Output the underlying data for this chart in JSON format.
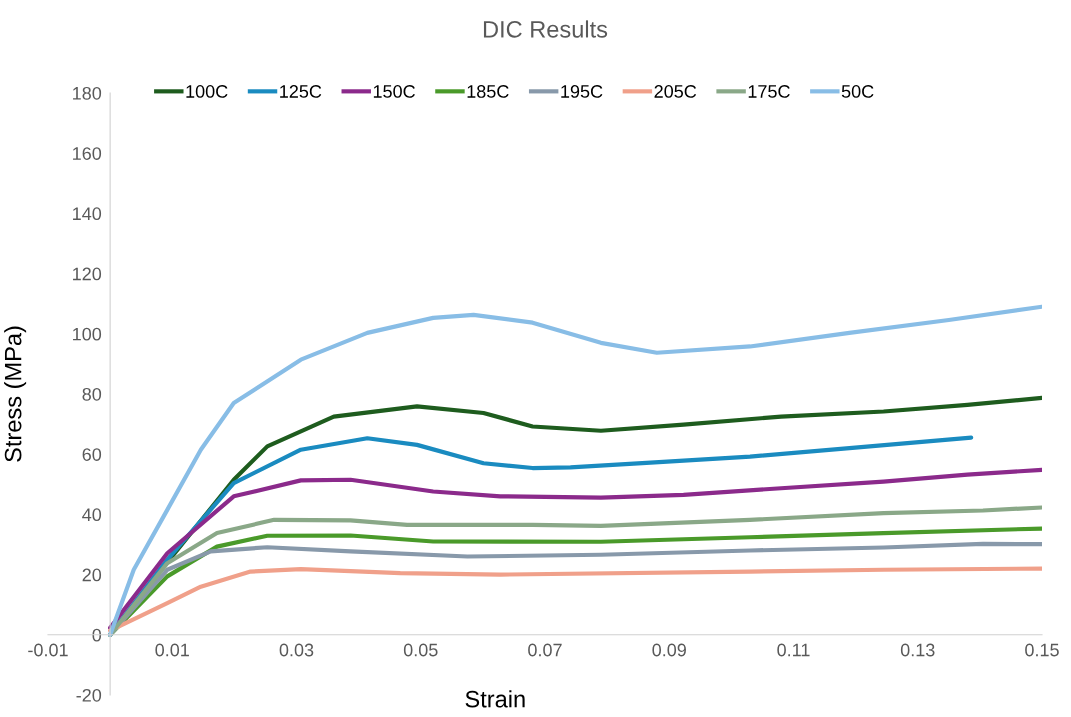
{
  "chart_data": {
    "type": "line",
    "title": "DIC Results",
    "xlabel": "Strain",
    "ylabel": "Stress (MPa)",
    "xlim": [
      -0.01,
      0.15
    ],
    "xticks": [
      -0.01,
      0.01,
      0.03,
      0.05,
      0.07,
      0.09,
      0.11,
      0.13,
      0.15
    ],
    "ylim": [
      -20,
      180
    ],
    "yticks": [
      -20,
      0,
      20,
      40,
      60,
      80,
      100,
      120,
      140,
      160,
      180
    ],
    "grid": false,
    "legend": "top",
    "marker": "none",
    "line_style": "solid",
    "series": [
      {
        "name": "100C",
        "color": "#1e5c1e",
        "x": [
          0,
          0.0092,
          0.0199,
          0.0253,
          0.036,
          0.0494,
          0.0601,
          0.068,
          0.079,
          0.0923,
          0.108,
          0.1245,
          0.138,
          0.15
        ],
        "values": [
          0,
          24,
          51.5,
          62.6,
          72.5,
          75.9,
          73.7,
          69.2,
          67.8,
          69.8,
          72.5,
          74.2,
          76.4,
          78.7
        ]
      },
      {
        "name": "125C",
        "color": "#1a8bc0",
        "x": [
          0,
          0.0092,
          0.0199,
          0.0307,
          0.0414,
          0.0494,
          0.0601,
          0.068,
          0.0741,
          0.087,
          0.103,
          0.119,
          0.1386
        ],
        "values": [
          0,
          25,
          50.4,
          61.5,
          65.3,
          63.1,
          57,
          55.4,
          55.6,
          57.2,
          59.2,
          62,
          65.5
        ]
      },
      {
        "name": "150C",
        "color": "#8b2a8b",
        "x": [
          0,
          0.0092,
          0.0199,
          0.0307,
          0.0387,
          0.052,
          0.0628,
          0.079,
          0.0923,
          0.108,
          0.1245,
          0.138,
          0.15
        ],
        "values": [
          2.3,
          27.1,
          46,
          51.3,
          51.5,
          47.6,
          46,
          45.6,
          46.5,
          48.7,
          50.9,
          53.2,
          54.8
        ]
      },
      {
        "name": "185C",
        "color": "#4a9a2a",
        "x": [
          0,
          0.0092,
          0.0172,
          0.0253,
          0.0387,
          0.052,
          0.079,
          0.103,
          0.1245,
          0.15
        ],
        "values": [
          0,
          19.4,
          29.3,
          32.9,
          33,
          31,
          30.9,
          32.4,
          33.8,
          35.3
        ]
      },
      {
        "name": "195C",
        "color": "#8899aa",
        "x": [
          0,
          0.0092,
          0.0162,
          0.0253,
          0.0387,
          0.0575,
          0.079,
          0.103,
          0.1245,
          0.1405,
          0.15
        ],
        "values": [
          0,
          21.6,
          27.7,
          29.1,
          27.7,
          26,
          26.6,
          28,
          29,
          30.2,
          30.1
        ]
      },
      {
        "name": "205C",
        "color": "#f0a08a",
        "x": [
          0,
          0.0092,
          0.0146,
          0.0226,
          0.0307,
          0.0467,
          0.0628,
          0.103,
          0.1245,
          0.15
        ],
        "values": [
          1.4,
          10.5,
          16,
          21,
          21.8,
          20.5,
          20,
          21,
          21.6,
          22
        ]
      },
      {
        "name": "175C",
        "color": "#8aa888",
        "x": [
          0,
          0.0092,
          0.0172,
          0.0264,
          0.0387,
          0.0478,
          0.068,
          0.079,
          0.103,
          0.1245,
          0.1405,
          0.15
        ],
        "values": [
          0,
          23.8,
          33.8,
          38.2,
          38,
          36.5,
          36.5,
          36.2,
          38.2,
          40.4,
          41.3,
          42.3
        ]
      },
      {
        "name": "50C",
        "color": "#88bde6",
        "x": [
          0,
          0.0038,
          0.0092,
          0.0146,
          0.0199,
          0.0307,
          0.0414,
          0.052,
          0.0585,
          0.068,
          0.079,
          0.088,
          0.103,
          0.119,
          0.135,
          0.15
        ],
        "values": [
          0,
          21.6,
          41.5,
          61.5,
          77,
          91.4,
          100.3,
          105.3,
          106.3,
          103.7,
          97,
          93.7,
          95.8,
          100.3,
          104.6,
          109
        ]
      }
    ]
  }
}
